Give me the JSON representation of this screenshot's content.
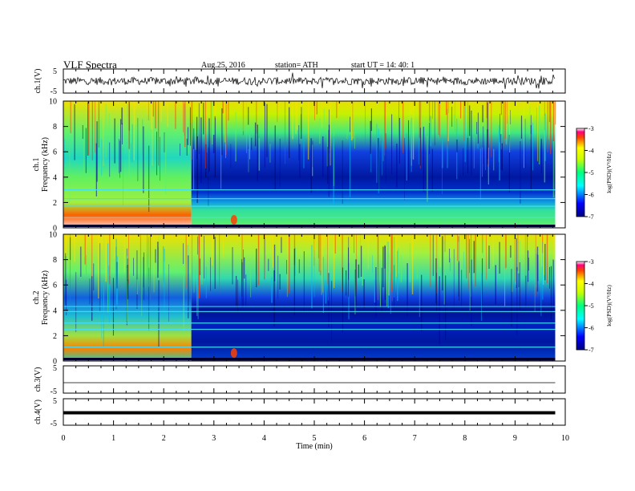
{
  "header": {
    "title": "VLF  Spectra",
    "date": "Aug.25, 2016",
    "station": "station= ATH",
    "start": "start  UT  =   14: 40: 1"
  },
  "chart_data": [
    {
      "type": "line",
      "ylabel": "ch.1(V)",
      "ylim": [
        -5,
        5
      ],
      "yticks": [
        "5",
        "-5"
      ],
      "xlim": [
        0,
        10
      ],
      "description": "noisy waveform around 0 V, amplitude about 1-2.5 V",
      "colors": {
        "trace": "#000000"
      }
    },
    {
      "type": "heatmap",
      "channel_label": "ch.1",
      "ylabel": "Frequency  (kHz)",
      "ylim": [
        0,
        10
      ],
      "yticks": [
        "0",
        "2",
        "4",
        "6",
        "8",
        "10"
      ],
      "xlim": [
        0,
        9.8
      ],
      "colorbar": {
        "label": "log(PSD)(V²/Hz)",
        "ticks": [
          "-3",
          "-4",
          "-5",
          "-6",
          "-7"
        ],
        "range": [
          -7,
          -3
        ]
      },
      "features": {
        "transition_time_min": 2.55,
        "bright_spot_time_min": 3.4,
        "dark_band_kHz": [
          1.5,
          6.5
        ],
        "lines_kHz": [
          0.8,
          1.7,
          2.3,
          3.0
        ]
      }
    },
    {
      "type": "heatmap",
      "channel_label": "ch.2",
      "ylabel": "Frequency  (kHz)",
      "ylim": [
        0,
        10
      ],
      "yticks": [
        "0",
        "2",
        "4",
        "6",
        "8",
        "10"
      ],
      "xlim": [
        0,
        9.8
      ],
      "colorbar": {
        "label": "log(PSD)(V²/Hz)",
        "ticks": [
          "-3",
          "-4",
          "-5",
          "-6",
          "-7"
        ],
        "range": [
          -7,
          -3
        ]
      },
      "features": {
        "transition_time_min": 2.55,
        "bright_spot_time_min": 3.4,
        "dark_band_kHz": [
          0.2,
          5.5
        ],
        "lines_kHz": [
          1.1,
          2.5,
          3.0,
          3.9,
          4.3
        ]
      }
    },
    {
      "type": "line",
      "ylabel": "ch.3(V)",
      "ylim": [
        -5,
        5
      ],
      "yticks": [
        "5",
        "-5"
      ],
      "xlim": [
        0,
        10
      ],
      "values_approx": "flat near 0 V",
      "colors": {
        "trace": "#000000"
      }
    },
    {
      "type": "line",
      "ylabel": "ch.4(V)",
      "ylim": [
        -5,
        5
      ],
      "yticks": [
        "5",
        "-5"
      ],
      "xlim": [
        0,
        10
      ],
      "values_approx": "thick flat trace near 0 V",
      "colors": {
        "trace": "#000000"
      }
    }
  ],
  "xaxis": {
    "label": "Time  (min)",
    "ticks": [
      "0",
      "1",
      "2",
      "3",
      "4",
      "5",
      "6",
      "7",
      "8",
      "9",
      "10"
    ],
    "xlim": [
      0,
      10
    ]
  }
}
